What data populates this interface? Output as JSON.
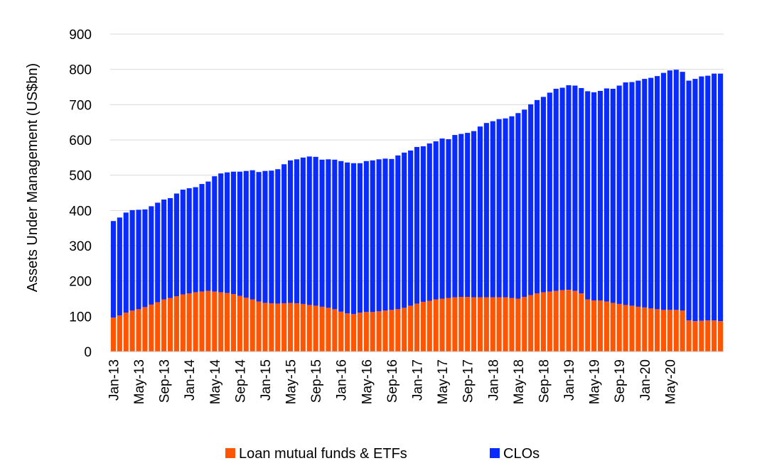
{
  "chart_data": {
    "type": "bar",
    "stacked": true,
    "ylabel": "Assets Under Management (US$bn)",
    "xlabel": "",
    "ylim": [
      0,
      900
    ],
    "yticks": [
      0,
      100,
      200,
      300,
      400,
      500,
      600,
      700,
      800,
      900
    ],
    "grid": true,
    "legend_position": "bottom",
    "x_tick_labels": [
      "Jan-13",
      "May-13",
      "Sep-13",
      "Jan-14",
      "May-14",
      "Sep-14",
      "Jan-15",
      "May-15",
      "Sep-15",
      "Jan-16",
      "May-16",
      "Sep-16",
      "Jan-17",
      "May-17",
      "Sep-17",
      "Jan-18",
      "May-18",
      "Sep-18",
      "Jan-19",
      "May-19",
      "Sep-19",
      "Jan-20",
      "May-20"
    ],
    "x_tick_every": 4,
    "series": [
      {
        "name": "Loan mutual funds & ETFs",
        "color": "#FF5500",
        "values": [
          96,
          102,
          110,
          116,
          120,
          126,
          133,
          140,
          148,
          152,
          157,
          162,
          165,
          168,
          170,
          172,
          170,
          168,
          166,
          163,
          158,
          153,
          148,
          142,
          138,
          137,
          136,
          137,
          138,
          137,
          135,
          132,
          130,
          127,
          124,
          120,
          113,
          108,
          106,
          110,
          112,
          112,
          114,
          116,
          118,
          120,
          124,
          130,
          136,
          141,
          144,
          148,
          150,
          152,
          154,
          155,
          155,
          154,
          154,
          154,
          154,
          154,
          154,
          152,
          150,
          155,
          160,
          165,
          168,
          170,
          172,
          174,
          175,
          172,
          165,
          148,
          145,
          145,
          142,
          138,
          135,
          132,
          130,
          127,
          125,
          122,
          120,
          118,
          118,
          118,
          116,
          88,
          86,
          87,
          88,
          88,
          86
        ]
      },
      {
        "name": "CLOs",
        "color": "#0A2BFF",
        "values": [
          274,
          278,
          284,
          285,
          282,
          277,
          279,
          282,
          283,
          283,
          291,
          297,
          298,
          298,
          305,
          310,
          327,
          337,
          342,
          347,
          352,
          359,
          366,
          367,
          374,
          376,
          381,
          394,
          404,
          408,
          415,
          421,
          422,
          417,
          421,
          424,
          427,
          428,
          428,
          424,
          428,
          430,
          431,
          431,
          428,
          436,
          440,
          440,
          444,
          441,
          446,
          448,
          454,
          450,
          460,
          462,
          465,
          471,
          484,
          494,
          499,
          505,
          507,
          515,
          526,
          531,
          541,
          548,
          554,
          564,
          573,
          574,
          580,
          582,
          582,
          590,
          590,
          594,
          604,
          607,
          619,
          631,
          634,
          641,
          648,
          654,
          661,
          672,
          679,
          681,
          677,
          680,
          687,
          693,
          694,
          700,
          702
        ]
      }
    ]
  }
}
